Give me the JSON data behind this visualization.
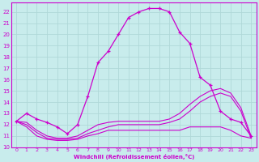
{
  "xlabel": "Windchill (Refroidissement éolien,°C)",
  "bg_color": "#c8ecec",
  "grid_color": "#b0d8d8",
  "line_color": "#cc00cc",
  "xlim": [
    -0.5,
    23.5
  ],
  "ylim": [
    10.0,
    22.8
  ],
  "yticks": [
    10,
    11,
    12,
    13,
    14,
    15,
    16,
    17,
    18,
    19,
    20,
    21,
    22
  ],
  "xticks": [
    0,
    1,
    2,
    3,
    4,
    5,
    6,
    7,
    8,
    9,
    10,
    11,
    12,
    13,
    14,
    15,
    16,
    17,
    18,
    19,
    20,
    21,
    22,
    23
  ],
  "hours": [
    0,
    1,
    2,
    3,
    4,
    5,
    6,
    7,
    8,
    9,
    10,
    11,
    12,
    13,
    14,
    15,
    16,
    17,
    18,
    19,
    20,
    21,
    22,
    23
  ],
  "temp": [
    12.3,
    13.0,
    12.5,
    12.2,
    11.8,
    11.2,
    12.0,
    14.5,
    17.5,
    18.5,
    20.0,
    21.5,
    22.0,
    22.3,
    22.3,
    22.0,
    20.2,
    19.2,
    16.2,
    15.5,
    13.2,
    12.5,
    12.2,
    11.0
  ],
  "line2": [
    12.3,
    12.2,
    11.5,
    11.0,
    10.8,
    10.8,
    11.0,
    11.5,
    12.0,
    12.2,
    12.3,
    12.3,
    12.3,
    12.3,
    12.3,
    12.5,
    13.0,
    13.8,
    14.5,
    15.0,
    15.2,
    14.8,
    13.5,
    11.0
  ],
  "line3": [
    12.3,
    12.0,
    11.3,
    10.8,
    10.7,
    10.7,
    10.8,
    11.2,
    11.5,
    11.8,
    12.0,
    12.0,
    12.0,
    12.0,
    12.0,
    12.2,
    12.5,
    13.2,
    14.0,
    14.5,
    14.8,
    14.5,
    13.2,
    10.8
  ],
  "line4": [
    12.3,
    11.8,
    11.0,
    10.7,
    10.6,
    10.6,
    10.7,
    11.0,
    11.2,
    11.5,
    11.5,
    11.5,
    11.5,
    11.5,
    11.5,
    11.5,
    11.5,
    11.8,
    11.8,
    11.8,
    11.8,
    11.5,
    11.0,
    10.8
  ]
}
